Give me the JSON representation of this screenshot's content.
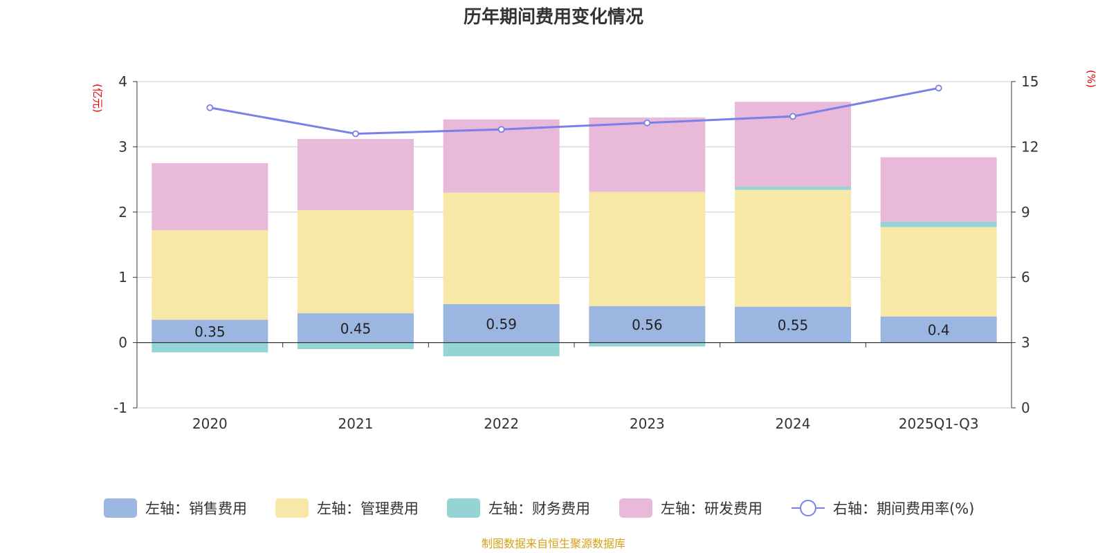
{
  "chart_data": {
    "type": "bar",
    "title": "历年期间费用变化情况",
    "categories": [
      "2020",
      "2021",
      "2022",
      "2023",
      "2024",
      "2025Q1-Q3"
    ],
    "left_axis": {
      "unit_label": "(亿元)",
      "ylim": [
        -1,
        4
      ],
      "ticks": [
        -1,
        0,
        1,
        2,
        3,
        4
      ]
    },
    "right_axis": {
      "unit_label": "(%)",
      "ylim": [
        0,
        15
      ],
      "ticks": [
        0,
        3,
        6,
        9,
        12,
        15
      ]
    },
    "series": [
      {
        "name": "左轴：销售费用",
        "axis": "left",
        "kind": "stacked-bar",
        "color": "#9bb6e0",
        "values": [
          0.35,
          0.45,
          0.59,
          0.56,
          0.55,
          0.4
        ],
        "labels": [
          "0.35",
          "0.45",
          "0.59",
          "0.56",
          "0.55",
          "0.4"
        ]
      },
      {
        "name": "左轴：管理费用",
        "axis": "left",
        "kind": "stacked-bar",
        "color": "#f8e8a8",
        "values": [
          1.37,
          1.58,
          1.71,
          1.75,
          1.79,
          1.37
        ]
      },
      {
        "name": "左轴：财务费用",
        "axis": "left",
        "kind": "stacked-bar",
        "color": "#95d4d4",
        "values": [
          -0.15,
          -0.1,
          -0.21,
          -0.06,
          0.05,
          0.08
        ]
      },
      {
        "name": "左轴：研发费用",
        "axis": "left",
        "kind": "stacked-bar",
        "color": "#e8b9d9",
        "values": [
          1.03,
          1.09,
          1.12,
          1.14,
          1.3,
          0.99
        ]
      },
      {
        "name": "右轴：期间费用率(%)",
        "axis": "right",
        "kind": "line",
        "color": "#7b7fe8",
        "values": [
          13.8,
          12.6,
          12.8,
          13.1,
          13.4,
          14.7
        ]
      }
    ],
    "grid": true,
    "legend_position": "bottom"
  },
  "source_text": "制图数据来自恒生聚源数据库"
}
